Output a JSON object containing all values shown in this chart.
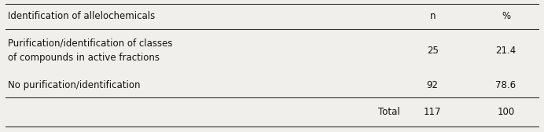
{
  "header": [
    "Identification of allelochemicals",
    "n",
    "%"
  ],
  "rows": [
    [
      "Purification/identification of classes\nof compounds in active fractions",
      "25",
      "21.4"
    ],
    [
      "No purification/identification",
      "92",
      "78.6"
    ]
  ],
  "total_row": [
    "Total",
    "117",
    "100"
  ],
  "bg_color": "#f0efeb",
  "line_color": "#333333",
  "text_color": "#111111",
  "font_size": 8.5
}
